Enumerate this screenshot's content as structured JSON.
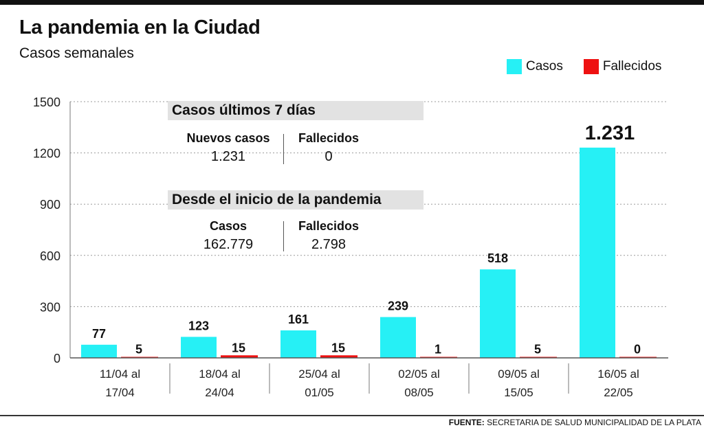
{
  "header": {
    "title": "La pandemia en la Ciudad",
    "subtitle": "Casos semanales"
  },
  "legend": [
    {
      "name": "Casos",
      "color": "#26f0f5"
    },
    {
      "name": "Fallecidos",
      "color": "#ee1111"
    }
  ],
  "panel_week": {
    "heading": "Casos últimos 7 días",
    "left_label": "Nuevos casos",
    "left_value": "1.231",
    "right_label": "Fallecidos",
    "right_value": "0"
  },
  "panel_total": {
    "heading": "Desde el inicio de la pandemia",
    "left_label": "Casos",
    "left_value": "162.779",
    "right_label": "Fallecidos",
    "right_value": "2.798"
  },
  "source": {
    "label": "FUENTE:",
    "text": " SECRETARIA DE SALUD MUNICIPALIDAD DE LA PLATA"
  },
  "chart_data": {
    "type": "bar",
    "title": "La pandemia en la Ciudad",
    "subtitle": "Casos semanales",
    "categories": [
      [
        "11/04 al",
        "17/04"
      ],
      [
        "18/04 al",
        "24/04"
      ],
      [
        "25/04 al",
        "01/05"
      ],
      [
        "02/05 al",
        "08/05"
      ],
      [
        "09/05 al",
        "15/05"
      ],
      [
        "16/05 al",
        "22/05"
      ]
    ],
    "series": [
      {
        "name": "Casos",
        "color": "#26f0f5",
        "values": [
          77,
          123,
          161,
          239,
          518,
          1231
        ],
        "labels": [
          "77",
          "123",
          "161",
          "239",
          "518",
          "1.231"
        ]
      },
      {
        "name": "Fallecidos",
        "color": "#ee1111",
        "values": [
          5,
          15,
          15,
          1,
          5,
          0
        ],
        "labels": [
          "5",
          "15",
          "15",
          "1",
          "5",
          "0"
        ]
      }
    ],
    "ylim": [
      0,
      1500
    ],
    "yticks": [
      0,
      300,
      600,
      900,
      1200,
      1500
    ],
    "grid": true,
    "legend": "top-right"
  }
}
